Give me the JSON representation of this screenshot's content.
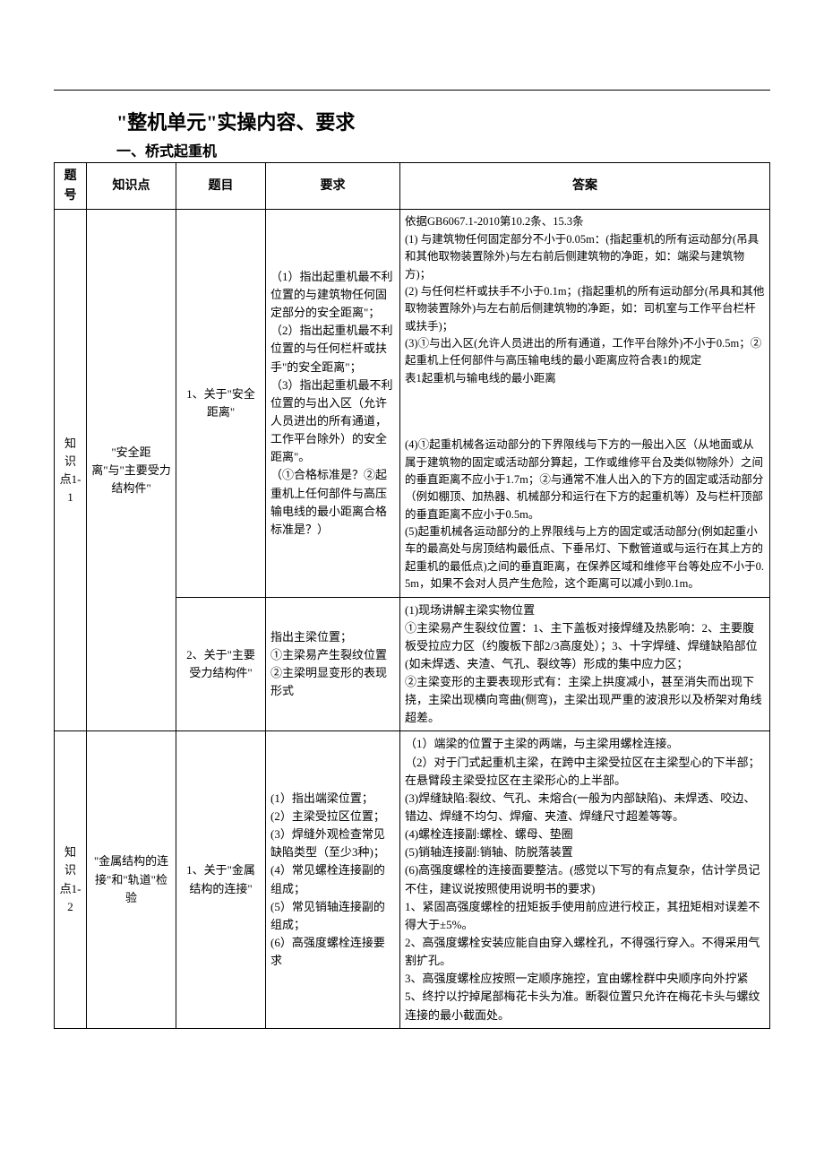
{
  "document": {
    "title": "\"整机单元\"实操内容、要求",
    "subtitle": "一、桥式起重机",
    "columns": {
      "no": "题号",
      "kp": "知识点",
      "topic": "题目",
      "req": "要求",
      "ans": "答案"
    },
    "rows": [
      {
        "no": "知识点1-1",
        "kp": "\"安全距离\"与\"主要受力结构件\"",
        "sub": [
          {
            "topic": "1、关于\"安全距离\"",
            "req": "（1）指出起重机最不利位置的与建筑物任何固定部分的安全距离\"；\n（2）指出起重机最不利位置的与任何栏杆或扶手\"的安全距离\"；\n（3）指出起重机最不利位置的与出入区（允许人员进出的所有通道，工作平台除外）的安全距离\"。\n（①合格标准是？②起重机上任何部件与高压输电线的最小距离合格标准是？）",
            "ans_top": "依据GB6067.1-2010第10.2条、15.3条\n(1) 与建筑物任何固定部分不小于0.05m：(指起重机的所有运动部分(吊具和其他取物装置除外)与左右前后侧建筑物的净距，如：端梁与建筑物方)；\n(2) 与任何栏杆或扶手不小于0.1m；(指起重机的所有运动部分(吊具和其他取物装置除外)与左右前后侧建筑物的净距，如：司机室与工作平台栏杆或扶手)；\n(3)①与出入区(允许人员进出的所有通道，工作平台除外)不小于0.5m；②起重机上任何部件与高压输电线的最小距离应符合表1的规定\n表1起重机与输电线的最小距离",
            "ans_bottom": "(4)①起重机械各运动部分的下界限线与下方的一般出入区（从地面或从属于建筑物的固定或活动部分算起，工作或维修平台及类似物除外）之间的垂直距离不应小于1.7m；②与通常不准人出入的下方的固定或活动部分（例如棚顶、加热器、机械部分和运行在下方的起重机等）及与栏杆顶部的垂直距离不应小于0.5m。\n(5)起重机械各运动部分的上界限线与上方的固定或活动部分(例如起重小车的最高处与房顶结构最低点、下垂吊灯、下敷管道或与运行在其上方的起重机的最低点)之间的垂直距离，在保养区域和维修平台等处应不小于0.5m，如果不会对人员产生危险，这个距离可以减小到0.1m。"
          },
          {
            "topic": "2、关于\"主要受力结构件\"",
            "req": "指出主梁位置；\n①主梁易产生裂纹位置\n②主梁明显变形的表现形式",
            "ans": "(1)现场讲解主梁实物位置\n①主梁易产生裂纹位置：1、主下盖板对接焊缝及热影响：2、主要腹板受拉应力区（约腹板下部2/3高度处）；3、十字焊缝、焊缝缺陷部位(如未焊透、夹渣、气孔、裂纹等）形成的集中应力区；\n②主梁变形的主要表现形式有：主梁上拱度减小，甚至消失而出现下挠，主梁出现横向弯曲(侧弯)，主梁出现严重的波浪形以及桥架对角线超差。"
          }
        ]
      },
      {
        "no": "知识点1-2",
        "kp": "\"金属结构的连接\"和\"轨道\"检验",
        "sub": [
          {
            "topic": "1、关于\"金属结构的连接\"",
            "req": "(1）指出端梁位置；\n(2）主梁受拉区位置；\n(3）焊缝外观检查常见缺陷类型（至少3种)；\n(4）常见螺栓连接副的组成；\n(5）常见销轴连接副的组成；\n(6）高强度螺栓连接要求",
            "ans": "（1）端梁的位置于主梁的两端，与主梁用螺栓连接。\n（2）对于门式起重机主梁，在跨中主梁受拉区在主梁型心的下半部；在悬臂段主梁受拉区在主梁形心的上半部。\n(3)焊缝缺陷:裂纹、气孔、未熔合(一般为内部缺陷)、未焊透、咬边、错边、焊缝不均匀、焊瘤、夹渣、焊缝尺寸超差等等。\n(4)螺栓连接副:螺栓、螺母、垫圈\n(5)销轴连接副:销轴、防脱落装置\n(6)高强度螺栓的连接面要整洁。(感觉以下写的有点复杂，估计学员记不住，建议说按照使用说明书的要求)\n1、紧固高强度螺栓的扭矩扳手使用前应进行校正，其扭矩相对误差不得大于±5%。\n2、高强度螺栓安装应能自由穿入螺栓孔，不得强行穿入。不得采用气割扩孔。\n3、高强度螺栓应按照一定顺序施控，宜由螺栓群中央顺序向外拧紧\n5、终拧以拧掉尾部梅花卡头为准。断裂位置只允许在梅花卡头与螺纹连接的最小截面处。"
          }
        ]
      }
    ]
  }
}
